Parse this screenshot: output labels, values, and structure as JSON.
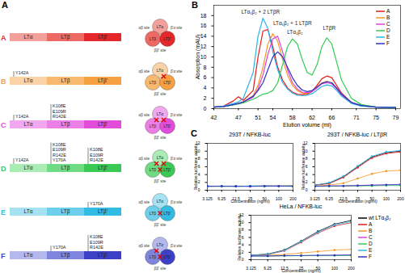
{
  "panel_labels": [
    "A",
    "B",
    "C"
  ],
  "diagram": {
    "segments": [
      "LTα",
      "LTβ",
      "LTβ'"
    ],
    "sites": [
      "αβ site",
      "β'α site",
      "ββ' site"
    ],
    "rows": [
      {
        "label": "A",
        "colors": [
          "#f4a09a",
          "#ec6a63",
          "#e3272a"
        ],
        "mutations": [
          [],
          [],
          []
        ],
        "blocked_sites": []
      },
      {
        "label": "B",
        "colors": [
          "#fbd3a6",
          "#f9b870",
          "#f5a041"
        ],
        "mutations": [
          [
            "Y142A"
          ],
          [],
          []
        ],
        "blocked_sites": [
          "β'α site"
        ]
      },
      {
        "label": "C",
        "colors": [
          "#f2a8ee",
          "#ec7fe6",
          "#e24ddc"
        ],
        "mutations": [
          [
            "Y142A"
          ],
          [
            "K108E",
            "E109R",
            "R142E"
          ],
          []
        ],
        "blocked_sites": [
          "β'α site",
          "αβ site"
        ]
      },
      {
        "label": "D",
        "colors": [
          "#a9ecb4",
          "#6fdc84",
          "#3bc955"
        ],
        "mutations": [
          [
            "Y142A"
          ],
          [
            "K108E",
            "E109R",
            "R142E",
            "Y170A"
          ],
          [
            "K108E",
            "E109R",
            "R142E"
          ]
        ],
        "blocked_sites": [
          "β'α site",
          "αβ site",
          "ββ' site"
        ]
      },
      {
        "label": "E",
        "colors": [
          "#a5e3f3",
          "#6dcfeb",
          "#33bce3"
        ],
        "mutations": [
          [],
          [],
          [
            "Y170A"
          ]
        ],
        "blocked_sites": [
          "ββ' site"
        ]
      },
      {
        "label": "F",
        "colors": [
          "#b5b8ec",
          "#7f84dd",
          "#3b40c6"
        ],
        "mutations": [
          [],
          [
            "Y170A"
          ],
          [
            "K108E",
            "E109R",
            "R142E"
          ]
        ],
        "blocked_sites": [
          "αβ site",
          "ββ' site"
        ]
      }
    ]
  },
  "chart_data": [
    {
      "type": "line",
      "xlabel": "Elution volume (ml)",
      "ylabel": "Absorption (mAU)",
      "x": [
        42,
        44,
        46,
        47,
        48,
        50,
        51,
        52,
        53,
        54,
        55,
        56,
        57,
        58,
        59,
        60,
        61,
        62,
        63,
        64,
        65,
        66,
        67,
        68,
        70,
        72,
        75,
        79
      ],
      "xlim": [
        42,
        80
      ],
      "xticks": [
        42,
        47,
        51,
        54,
        58,
        62,
        66,
        71,
        75,
        79
      ],
      "ylim": [
        0,
        20
      ],
      "yticks": [
        0,
        2,
        4,
        6,
        8,
        10,
        12,
        14,
        16,
        18
      ],
      "legend": "top-right",
      "series": [
        {
          "name": "A",
          "color": "#e41a1c",
          "values": [
            0.3,
            0.5,
            1.5,
            2.3,
            1.6,
            3.5,
            10,
            15,
            15.3,
            12,
            8,
            5.5,
            4,
            3.2,
            2.8,
            2.7,
            2.8,
            3.3,
            4.5,
            5.8,
            6.3,
            6,
            4.5,
            3,
            1.2,
            0.6,
            0.3,
            0.2
          ]
        },
        {
          "name": "B",
          "color": "#f7941d",
          "values": [
            0.3,
            0.4,
            0.8,
            1.0,
            1.3,
            2.5,
            4.5,
            8,
            12.5,
            14.5,
            13,
            9.5,
            6.5,
            4.5,
            3.5,
            3,
            3,
            3.3,
            4.2,
            5,
            5.3,
            5,
            4,
            2.8,
            1.2,
            0.6,
            0.3,
            0.2
          ]
        },
        {
          "name": "C",
          "color": "#e040e0",
          "values": [
            0.3,
            0.4,
            0.8,
            1,
            1.2,
            2.2,
            3.8,
            6.5,
            10.5,
            13.5,
            14,
            11,
            7.5,
            5,
            3.8,
            3.2,
            3.1,
            3.3,
            4,
            4.8,
            5,
            4.8,
            3.8,
            2.6,
            1.1,
            0.6,
            0.3,
            0.2
          ]
        },
        {
          "name": "D",
          "color": "#33cc55",
          "values": [
            0.3,
            0.4,
            0.7,
            0.9,
            1.1,
            1.8,
            2.3,
            2.8,
            3,
            3.5,
            5,
            8.5,
            12,
            13.5,
            12.5,
            9.5,
            7,
            6.5,
            8.5,
            12,
            13.7,
            12.5,
            9,
            5.5,
            2,
            0.8,
            0.3,
            0.2
          ]
        },
        {
          "name": "E",
          "color": "#29b6e8",
          "values": [
            0.3,
            0.5,
            1,
            1.3,
            2,
            7,
            14,
            17.5,
            15.5,
            11,
            7.5,
            5,
            3.8,
            3,
            2.6,
            2.5,
            2.6,
            2.9,
            3.6,
            4.3,
            4.6,
            4.4,
            3.5,
            2.4,
            1,
            0.5,
            0.3,
            0.2
          ]
        },
        {
          "name": "F",
          "color": "#2c35c0",
          "values": [
            0.3,
            0.4,
            0.8,
            1,
            1.3,
            2.4,
            3.5,
            5,
            7.5,
            10,
            11,
            10,
            8,
            6,
            4.5,
            3.6,
            3.3,
            3.5,
            4.2,
            4.9,
            5.2,
            5,
            4,
            2.8,
            1.2,
            0.6,
            0.3,
            0.2
          ]
        }
      ],
      "annotations": [
        {
          "text": "LTα₁β₂ + 2 LTβR",
          "x": 51.5,
          "y": 18.7
        },
        {
          "text": "LTα₁β₂ + 1 LTβR",
          "x": 58,
          "y": 16.5
        },
        {
          "text": "LTα₁β₂",
          "x": 58.5,
          "y": 14.8
        },
        {
          "text": "LTβR",
          "x": 65.5,
          "y": 15.5
        }
      ]
    },
    {
      "type": "line",
      "title": "293T / NFKB-luc",
      "xlabel": "Concentration (ng/ml)",
      "ylabel": "Relative luciferase activity",
      "log": "x",
      "marker": "circle",
      "x": [
        3.125,
        6.25,
        12.5,
        25,
        50,
        100,
        200
      ],
      "xlim": [
        3.125,
        200
      ],
      "xticks": [
        3.125,
        6.25,
        12.5,
        25,
        50,
        100,
        200
      ],
      "ylim": [
        0,
        12
      ],
      "yticks": [
        0,
        2,
        4,
        6,
        8,
        10,
        12
      ],
      "series": [
        {
          "name": "wt LTα₁β₂",
          "color": "#000000",
          "values": [
            1.0,
            1.05,
            1.0,
            1.05,
            1.1,
            1.05,
            1.1
          ]
        },
        {
          "name": "A",
          "color": "#e41a1c",
          "values": [
            1.0,
            1.0,
            1.05,
            1.0,
            1.05,
            1.1,
            1.05
          ]
        },
        {
          "name": "B",
          "color": "#f7941d",
          "values": [
            1.05,
            1.0,
            1.0,
            1.05,
            1.0,
            1.05,
            1.1
          ]
        },
        {
          "name": "C",
          "color": "#e040e0",
          "values": [
            1.0,
            1.05,
            1.05,
            1.0,
            1.05,
            1.0,
            1.05
          ]
        },
        {
          "name": "D",
          "color": "#33cc55",
          "values": [
            1.05,
            1.0,
            1.05,
            1.05,
            1.0,
            1.05,
            1.0
          ]
        },
        {
          "name": "E",
          "color": "#29b6e8",
          "values": [
            1.0,
            1.0,
            1.0,
            1.05,
            1.05,
            1.1,
            1.1
          ]
        },
        {
          "name": "F",
          "color": "#2c35c0",
          "values": [
            1.05,
            1.05,
            1.0,
            1.0,
            1.05,
            1.05,
            1.0
          ]
        }
      ]
    },
    {
      "type": "line",
      "title": "293T / NFKB-luc / LTβR",
      "xlabel": "Concentration (ng/ml)",
      "ylabel": "Relative luciferase activity",
      "log": "x",
      "marker": "circle",
      "x": [
        3.125,
        6.25,
        12.5,
        25,
        50,
        100,
        200
      ],
      "xlim": [
        3.125,
        200
      ],
      "xticks": [
        3.125,
        6.25,
        12.5,
        25,
        50,
        100,
        200
      ],
      "ylim": [
        0,
        12
      ],
      "yticks": [
        0,
        2,
        4,
        6,
        8,
        10,
        12
      ],
      "series": [
        {
          "name": "wt LTα₁β₂",
          "color": "#000000",
          "values": [
            1.3,
            1.8,
            3.4,
            6.0,
            8.5,
            9.6,
            10.0
          ]
        },
        {
          "name": "A",
          "color": "#e41a1c",
          "values": [
            1.3,
            1.7,
            3.3,
            5.8,
            8.3,
            9.4,
            9.8
          ]
        },
        {
          "name": "B",
          "color": "#f7941d",
          "values": [
            1.1,
            1.3,
            1.8,
            3.0,
            4.2,
            4.9,
            5.1
          ]
        },
        {
          "name": "C",
          "color": "#e040e0",
          "values": [
            1.0,
            1.1,
            1.1,
            1.2,
            1.3,
            1.3,
            1.4
          ]
        },
        {
          "name": "D",
          "color": "#33cc55",
          "values": [
            1.0,
            1.0,
            1.1,
            1.1,
            1.1,
            1.2,
            1.2
          ]
        },
        {
          "name": "E",
          "color": "#29b6e8",
          "values": [
            1.3,
            1.9,
            3.6,
            6.2,
            8.7,
            9.8,
            10.2
          ]
        },
        {
          "name": "F",
          "color": "#2c35c0",
          "values": [
            1.0,
            1.1,
            1.1,
            1.2,
            1.3,
            1.4,
            1.5
          ]
        }
      ]
    },
    {
      "type": "line",
      "title": "HeLa / NFKB-luc",
      "xlabel": "Concentration (ng/ml)",
      "ylabel": "Relative luciferase activity",
      "log": "x",
      "marker": "circle",
      "legend": "right",
      "x": [
        3.125,
        6.25,
        12.5,
        25,
        50,
        100,
        200
      ],
      "xlim": [
        3.125,
        200
      ],
      "xticks": [
        3.125,
        6.25,
        12.5,
        25,
        50,
        100,
        200
      ],
      "ylim": [
        0,
        12
      ],
      "yticks": [
        0,
        2,
        4,
        6,
        8,
        10,
        12
      ],
      "series": [
        {
          "name": "wt LTα₁β₂",
          "color": "#000000",
          "values": [
            1.2,
            1.5,
            2.6,
            5.0,
            7.6,
            9.6,
            10.6
          ]
        },
        {
          "name": "A",
          "color": "#e41a1c",
          "values": [
            1.2,
            1.4,
            2.4,
            4.7,
            7.2,
            9.1,
            10.0
          ]
        },
        {
          "name": "B",
          "color": "#f7941d",
          "values": [
            1.1,
            1.2,
            1.4,
            1.8,
            2.2,
            2.6,
            2.8
          ]
        },
        {
          "name": "C",
          "color": "#e040e0",
          "values": [
            1.0,
            1.0,
            1.1,
            1.1,
            1.1,
            1.2,
            1.2
          ]
        },
        {
          "name": "D",
          "color": "#33cc55",
          "values": [
            1.0,
            1.0,
            1.0,
            1.1,
            1.1,
            1.1,
            1.1
          ]
        },
        {
          "name": "E",
          "color": "#29b6e8",
          "values": [
            1.2,
            1.5,
            2.5,
            4.9,
            7.4,
            9.4,
            10.3
          ]
        },
        {
          "name": "F",
          "color": "#2c35c0",
          "values": [
            1.0,
            1.0,
            1.1,
            1.1,
            1.2,
            1.2,
            1.3
          ]
        }
      ]
    }
  ]
}
